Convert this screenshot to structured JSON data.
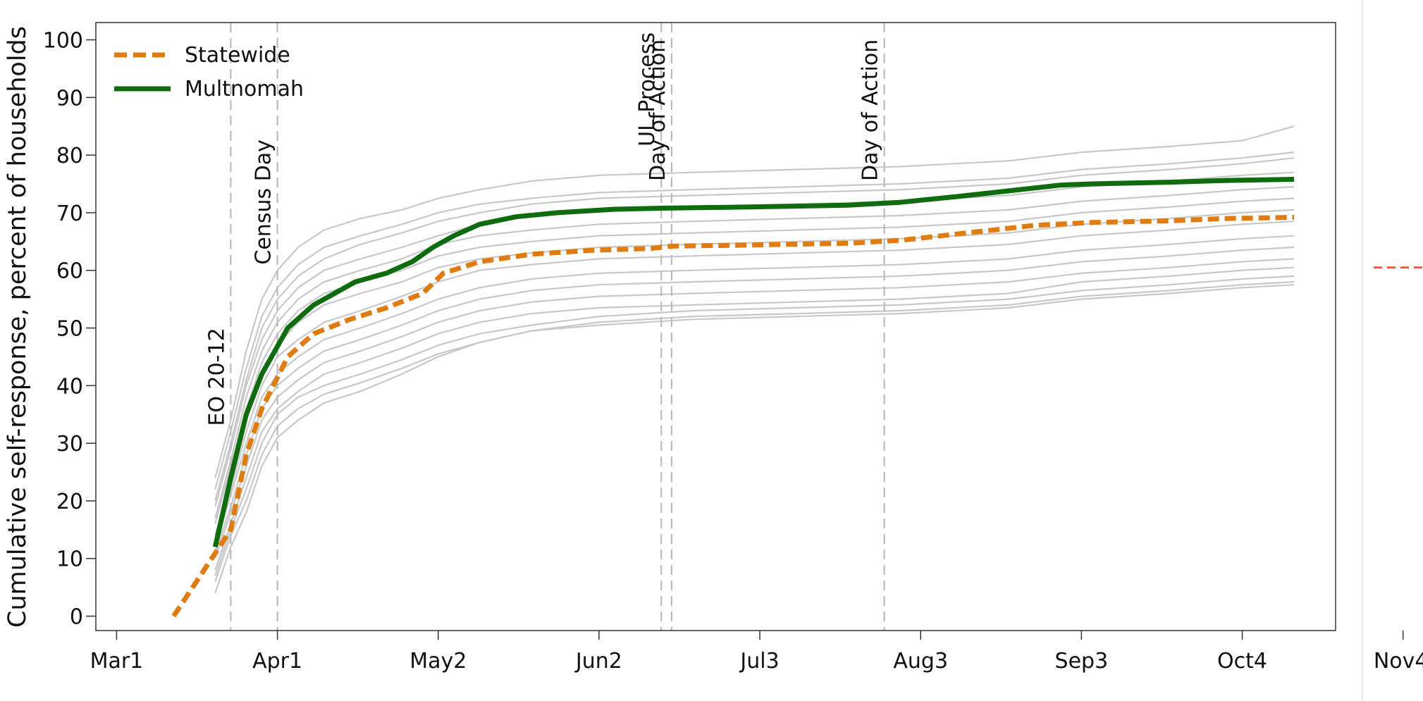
{
  "chart_data": {
    "type": "line",
    "title": "",
    "ylabel": "Cumulative self-response, percent of households",
    "xlabel": "",
    "xlim": [
      "2020-02-26",
      "2020-10-22"
    ],
    "ylim": [
      -2.5,
      103
    ],
    "x_ticks": [
      {
        "date": "2020-03-01",
        "label": "Mar1"
      },
      {
        "date": "2020-04-01",
        "label": "Apr1"
      },
      {
        "date": "2020-05-02",
        "label": "May2"
      },
      {
        "date": "2020-06-02",
        "label": "Jun2"
      },
      {
        "date": "2020-07-03",
        "label": "Jul3"
      },
      {
        "date": "2020-08-03",
        "label": "Aug3"
      },
      {
        "date": "2020-09-03",
        "label": "Sep3"
      },
      {
        "date": "2020-10-04",
        "label": "Oct4"
      }
    ],
    "extra_tick": {
      "date": "2020-11-04",
      "label": "Nov4"
    },
    "y_ticks": [
      0,
      10,
      20,
      30,
      40,
      50,
      60,
      70,
      80,
      90,
      100
    ],
    "grid": false,
    "legend_position": "top-left",
    "series": [
      {
        "name": "Statewide",
        "color": "#E07B10",
        "style": "dashed",
        "x": [
          "2020-03-12",
          "2020-03-23",
          "2020-03-26",
          "2020-03-29",
          "2020-04-03",
          "2020-04-08",
          "2020-04-15",
          "2020-04-22",
          "2020-04-29",
          "2020-05-03",
          "2020-05-10",
          "2020-05-20",
          "2020-06-01",
          "2020-06-12",
          "2020-06-16",
          "2020-07-01",
          "2020-07-20",
          "2020-07-30",
          "2020-08-10",
          "2020-08-25",
          "2020-09-05",
          "2020-09-20",
          "2020-10-01",
          "2020-10-14"
        ],
        "y": [
          0,
          15,
          28,
          36,
          45,
          49,
          51.5,
          53.5,
          56,
          59.5,
          61.5,
          62.8,
          63.5,
          63.8,
          64.2,
          64.4,
          64.7,
          65.2,
          66.3,
          67.8,
          68.3,
          68.6,
          69.0,
          69.2
        ]
      },
      {
        "name": "Multnomah",
        "color": "#0E6B0E",
        "style": "solid",
        "x": [
          "2020-03-20",
          "2020-03-23",
          "2020-03-26",
          "2020-03-29",
          "2020-04-03",
          "2020-04-08",
          "2020-04-12",
          "2020-04-16",
          "2020-04-22",
          "2020-04-27",
          "2020-05-01",
          "2020-05-05",
          "2020-05-10",
          "2020-05-17",
          "2020-05-25",
          "2020-06-05",
          "2020-06-15",
          "2020-07-01",
          "2020-07-20",
          "2020-07-30",
          "2020-08-10",
          "2020-08-20",
          "2020-08-30",
          "2020-09-05",
          "2020-09-20",
          "2020-10-01",
          "2020-10-14"
        ],
        "y": [
          12,
          24,
          35,
          42,
          50,
          54,
          56,
          58,
          59.5,
          61.5,
          64,
          66,
          68,
          69.3,
          70,
          70.6,
          70.8,
          71.0,
          71.3,
          71.8,
          72.8,
          73.8,
          74.8,
          75.0,
          75.3,
          75.6,
          75.8
        ]
      }
    ],
    "counties": {
      "color": "#C8C8C8",
      "x": [
        "2020-03-20",
        "2020-03-23",
        "2020-03-26",
        "2020-03-29",
        "2020-04-01",
        "2020-04-05",
        "2020-04-10",
        "2020-04-17",
        "2020-04-25",
        "2020-05-02",
        "2020-05-10",
        "2020-05-20",
        "2020-06-02",
        "2020-06-20",
        "2020-07-10",
        "2020-07-30",
        "2020-08-20",
        "2020-09-03",
        "2020-09-20",
        "2020-10-04",
        "2020-10-14"
      ],
      "y": [
        [
          24,
          34,
          46,
          55,
          60,
          64,
          67,
          69,
          70.5,
          72.5,
          74,
          75.5,
          76.5,
          77,
          77.5,
          78,
          79,
          80.5,
          81.5,
          82.5,
          85
        ],
        [
          22,
          32,
          43,
          52,
          57,
          61,
          64,
          66,
          68,
          70,
          71.5,
          72.5,
          73.5,
          74,
          74.5,
          75,
          76,
          77.5,
          78.5,
          79.5,
          80.5
        ],
        [
          20,
          30,
          41,
          50,
          55,
          59,
          62,
          64.5,
          66.5,
          68.5,
          70,
          71.5,
          72.5,
          73,
          73.5,
          74,
          75,
          76.5,
          77.5,
          78.5,
          79.5
        ],
        [
          19,
          29,
          40,
          48,
          53,
          57,
          60,
          62,
          64,
          66,
          68,
          69.5,
          70.5,
          71,
          71.5,
          72,
          73,
          74.5,
          75.5,
          76.5,
          77
        ],
        [
          17,
          27,
          38,
          46,
          51,
          55,
          58,
          60,
          62,
          64.5,
          66,
          67,
          68,
          68.5,
          69,
          69.5,
          70.5,
          72,
          73,
          74,
          74.5
        ],
        [
          16,
          26,
          36,
          44,
          49,
          53,
          56,
          58,
          60,
          62.5,
          64,
          65,
          66,
          66.5,
          67,
          67.5,
          68.5,
          70,
          71,
          72,
          72.5
        ],
        [
          14,
          24,
          34,
          42,
          47,
          51,
          54,
          56,
          58,
          60.5,
          62,
          63,
          64,
          64.5,
          65,
          65.5,
          66.5,
          68,
          69,
          70,
          70.5
        ],
        [
          13,
          22,
          32,
          40,
          45,
          48,
          51,
          53,
          55.5,
          58,
          60,
          61,
          62,
          62.5,
          63,
          63.5,
          64.5,
          66,
          67,
          68,
          68.5
        ],
        [
          12,
          21,
          30,
          38,
          42,
          45,
          48,
          50,
          52.5,
          55,
          57,
          58.5,
          59.5,
          60,
          60.5,
          61,
          62,
          63.5,
          64.5,
          65.5,
          66
        ],
        [
          11,
          19,
          28,
          36,
          40,
          43,
          46,
          48,
          50.5,
          53,
          55,
          56.5,
          57.5,
          58,
          58.5,
          59,
          60,
          61.5,
          62.5,
          63.5,
          64
        ],
        [
          10,
          18,
          26,
          34,
          38,
          41,
          44,
          46,
          48.5,
          51,
          53,
          54.5,
          55.5,
          56,
          56.5,
          57,
          58,
          59.5,
          60.5,
          61.5,
          62
        ],
        [
          8,
          16,
          24,
          32,
          36,
          39,
          42,
          44,
          46.5,
          49,
          51,
          52.5,
          53.5,
          54,
          54.5,
          55,
          56,
          58,
          59,
          60,
          60.5
        ],
        [
          7,
          15,
          22,
          30,
          35,
          38,
          40,
          42,
          44.5,
          47,
          49,
          50.5,
          52,
          53,
          53.5,
          54,
          55,
          56.5,
          57.5,
          58.5,
          59
        ],
        [
          6,
          14,
          20,
          28,
          33,
          36,
          38.5,
          40.5,
          43,
          45.5,
          47.5,
          49.5,
          51,
          52,
          52.5,
          53,
          54,
          55.5,
          56.5,
          57.5,
          58
        ],
        [
          4,
          12,
          18,
          26,
          31,
          34,
          37,
          39,
          42,
          45,
          47.5,
          49.5,
          50.5,
          51.5,
          52,
          52.5,
          53.5,
          55,
          56,
          57,
          57.5
        ]
      ]
    },
    "annotations": [
      {
        "date": "2020-03-23",
        "label": "EO 20-12",
        "label_y": 33
      },
      {
        "date": "2020-04-01",
        "label": "Census Day",
        "label_y": 61
      },
      {
        "date": "2020-06-14",
        "label": "UL Process",
        "label_y": 81.5
      },
      {
        "date": "2020-06-16",
        "label": "Day of Action",
        "label_y": 75.5
      },
      {
        "date": "2020-07-27",
        "label": "Day of Action",
        "label_y": 75.5
      }
    ],
    "right_panel": {
      "reference_y": 60.5,
      "reference_color": "#E84A2A"
    }
  }
}
